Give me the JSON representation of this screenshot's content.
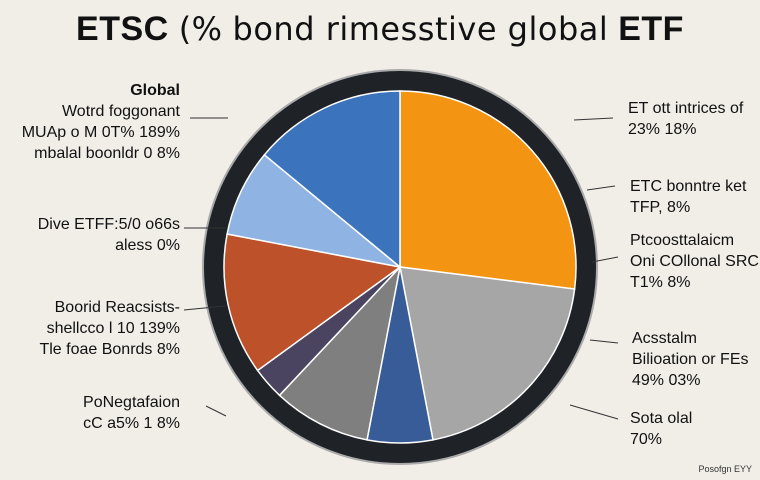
{
  "title_parts": [
    "ETSC",
    "(%",
    "bond rimesstive global",
    "ETF"
  ],
  "colors": {
    "background": "#f1eee8",
    "ring": "#1f2226",
    "ring_outline": "#aaaaaa",
    "leader": "#333333"
  },
  "chart_data": {
    "type": "pie",
    "slices": [
      {
        "value": 27,
        "color": "#f39512"
      },
      {
        "value": 20,
        "color": "#a6a6a6"
      },
      {
        "value": 6,
        "color": "#375c97"
      },
      {
        "value": 9,
        "color": "#7f7f7f"
      },
      {
        "value": 3,
        "color": "#4b4460"
      },
      {
        "value": 13,
        "color": "#bd512a"
      },
      {
        "value": 8,
        "color": "#8fb4e3"
      },
      {
        "value": 14,
        "color": "#3b74bd"
      }
    ]
  },
  "labels_left": [
    {
      "lines": [
        "Global",
        "Wotrd foggonant",
        "MUAp o M 0T% 189%",
        "mbalal boonldr 0 8%"
      ]
    },
    {
      "lines": [
        "Dive ETFF:5/0 o66s",
        "aless 0%"
      ]
    },
    {
      "lines": [
        "Boorid Reacsists-",
        "shellcco l 10 139%",
        "Tle foae Bonrds 8%"
      ]
    },
    {
      "lines": [
        "PoNegtafaion",
        "cC a5% 1 8%"
      ]
    }
  ],
  "labels_right": [
    {
      "lines": [
        "ET ott intrices of",
        "23% 18%"
      ]
    },
    {
      "lines": [
        "ETC bonntre ket",
        "TFP, 8%"
      ]
    },
    {
      "lines": [
        "Ptcoosttalaicm",
        "Oni COllonal SRC",
        "T1% 8%"
      ]
    },
    {
      "lines": [
        "Acsstalm",
        "Bilioation or FEs",
        "49% 03%"
      ]
    },
    {
      "lines": [
        "Sota olal",
        "70%"
      ]
    }
  ],
  "credit": "Posofgn EYY"
}
